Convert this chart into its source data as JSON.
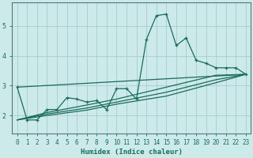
{
  "xlabel": "Humidex (Indice chaleur)",
  "bg_color": "#cceaea",
  "grid_color": "#aacccc",
  "line_color": "#1a6b5a",
  "xlim": [
    -0.5,
    23.5
  ],
  "ylim": [
    1.4,
    5.8
  ],
  "x_ticks": [
    0,
    1,
    2,
    3,
    4,
    5,
    6,
    7,
    8,
    9,
    10,
    11,
    12,
    13,
    14,
    15,
    16,
    17,
    18,
    19,
    20,
    21,
    22,
    23
  ],
  "y_ticks": [
    2,
    3,
    4,
    5
  ],
  "series_main": [
    [
      0,
      2.95
    ],
    [
      1,
      1.85
    ],
    [
      2,
      1.85
    ],
    [
      3,
      2.2
    ],
    [
      4,
      2.2
    ],
    [
      5,
      2.6
    ],
    [
      6,
      2.55
    ],
    [
      7,
      2.45
    ],
    [
      8,
      2.5
    ],
    [
      9,
      2.2
    ],
    [
      10,
      2.9
    ],
    [
      11,
      2.9
    ],
    [
      12,
      2.55
    ],
    [
      13,
      4.55
    ],
    [
      14,
      5.35
    ],
    [
      15,
      5.4
    ],
    [
      16,
      4.35
    ],
    [
      17,
      4.6
    ],
    [
      18,
      3.85
    ],
    [
      19,
      3.75
    ],
    [
      20,
      3.6
    ],
    [
      21,
      3.6
    ],
    [
      22,
      3.6
    ],
    [
      23,
      3.38
    ]
  ],
  "line_straight": [
    [
      0,
      2.95
    ],
    [
      23,
      3.38
    ]
  ],
  "line_trend1": [
    [
      0,
      1.85
    ],
    [
      3,
      2.1
    ],
    [
      7,
      2.35
    ],
    [
      10,
      2.55
    ],
    [
      15,
      2.95
    ],
    [
      20,
      3.35
    ],
    [
      23,
      3.38
    ]
  ],
  "line_trend2": [
    [
      0,
      1.85
    ],
    [
      3,
      2.05
    ],
    [
      7,
      2.25
    ],
    [
      10,
      2.45
    ],
    [
      15,
      2.78
    ],
    [
      20,
      3.2
    ],
    [
      23,
      3.38
    ]
  ],
  "line_trend3": [
    [
      0,
      1.85
    ],
    [
      3,
      2.0
    ],
    [
      7,
      2.18
    ],
    [
      10,
      2.38
    ],
    [
      15,
      2.65
    ],
    [
      20,
      3.1
    ],
    [
      23,
      3.38
    ]
  ]
}
